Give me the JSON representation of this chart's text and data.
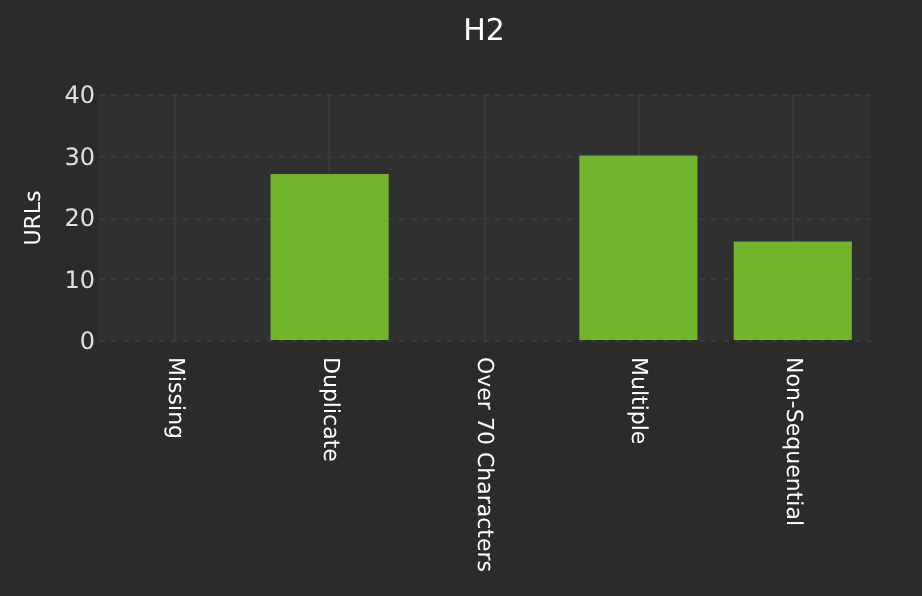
{
  "chart_data": {
    "type": "bar",
    "title": "H2",
    "ylabel": "URLs",
    "categories": [
      "Missing",
      "Duplicate",
      "Over 70 Characters",
      "Multiple",
      "Non-Sequential"
    ],
    "values": [
      0,
      27,
      0,
      30,
      16
    ],
    "color": "#72b42c",
    "ylim": [
      0,
      40
    ],
    "yticks": [
      0,
      10,
      20,
      30,
      40
    ],
    "grid": true
  }
}
